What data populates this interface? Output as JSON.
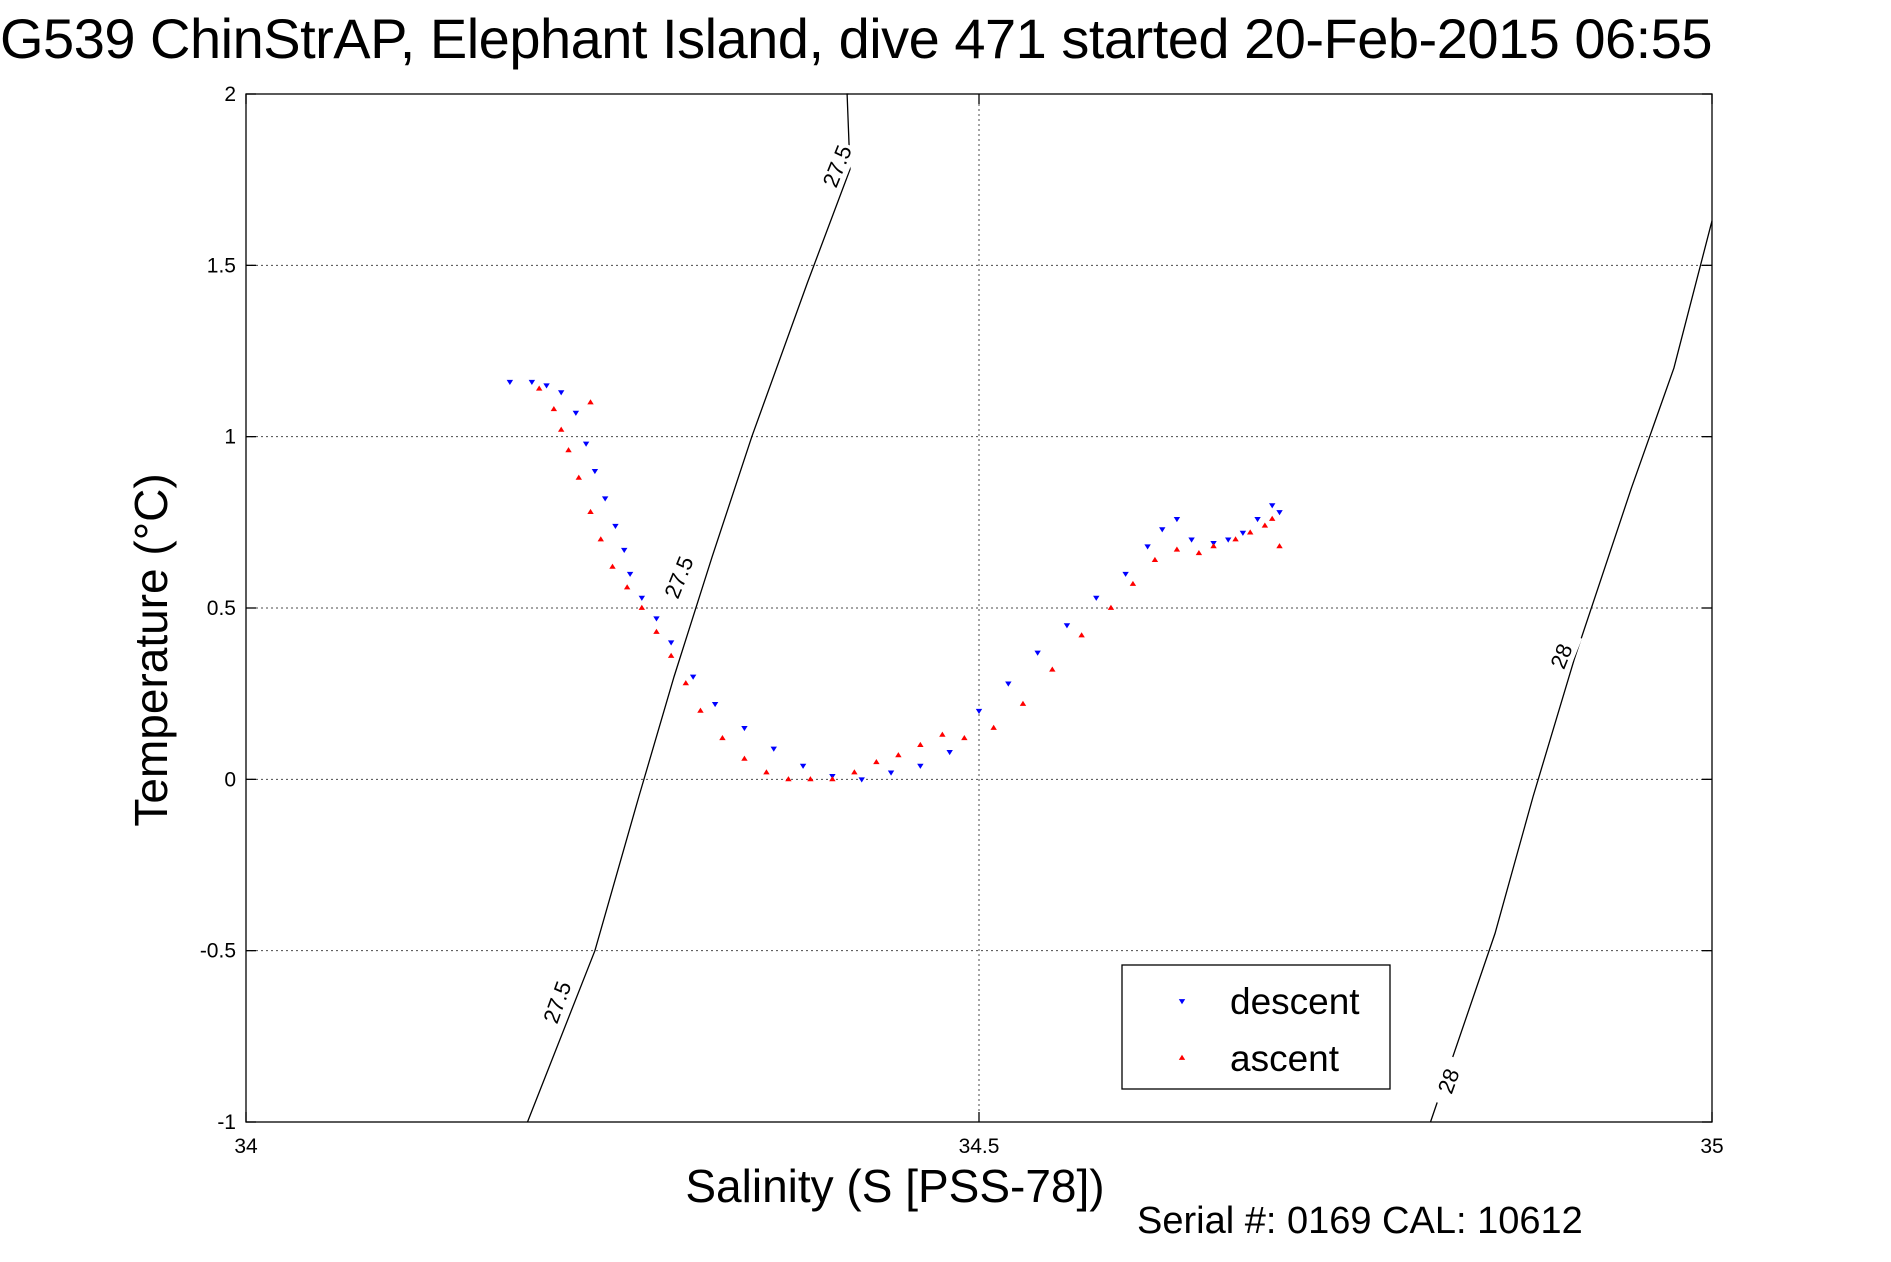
{
  "chart_data": {
    "type": "scatter",
    "title": "G539 ChinStrAP, Elephant Island, dive 471 started 20-Feb-2015 06:55",
    "xlabel": "Salinity (S [PSS-78])",
    "ylabel": "Temperature (°C)",
    "xlim": [
      34,
      35
    ],
    "ylim": [
      -1,
      2
    ],
    "x_ticks": [
      34,
      34.5,
      35
    ],
    "x_tick_labels": [
      "34",
      "34.5",
      "35"
    ],
    "y_ticks": [
      -1,
      -0.5,
      0,
      0.5,
      1,
      1.5,
      2
    ],
    "y_tick_labels": [
      "-1",
      "-0.5",
      "0",
      "0.5",
      "1",
      "1.5",
      "2"
    ],
    "grid": true,
    "legend_position": "bottom-right",
    "series": [
      {
        "name": "descent",
        "marker": "triangle-down",
        "color": "#0000ff",
        "points": [
          [
            34.18,
            1.16
          ],
          [
            34.195,
            1.16
          ],
          [
            34.205,
            1.15
          ],
          [
            34.215,
            1.13
          ],
          [
            34.225,
            1.07
          ],
          [
            34.232,
            0.98
          ],
          [
            34.238,
            0.9
          ],
          [
            34.245,
            0.82
          ],
          [
            34.252,
            0.74
          ],
          [
            34.258,
            0.67
          ],
          [
            34.262,
            0.6
          ],
          [
            34.27,
            0.53
          ],
          [
            34.28,
            0.47
          ],
          [
            34.29,
            0.4
          ],
          [
            34.305,
            0.3
          ],
          [
            34.32,
            0.22
          ],
          [
            34.34,
            0.15
          ],
          [
            34.36,
            0.09
          ],
          [
            34.38,
            0.04
          ],
          [
            34.4,
            0.01
          ],
          [
            34.42,
            0.0
          ],
          [
            34.44,
            0.02
          ],
          [
            34.46,
            0.04
          ],
          [
            34.48,
            0.08
          ],
          [
            34.5,
            0.2
          ],
          [
            34.52,
            0.28
          ],
          [
            34.54,
            0.37
          ],
          [
            34.56,
            0.45
          ],
          [
            34.58,
            0.53
          ],
          [
            34.6,
            0.6
          ],
          [
            34.615,
            0.68
          ],
          [
            34.625,
            0.73
          ],
          [
            34.635,
            0.76
          ],
          [
            34.645,
            0.7
          ],
          [
            34.66,
            0.69
          ],
          [
            34.67,
            0.7
          ],
          [
            34.68,
            0.72
          ],
          [
            34.69,
            0.76
          ],
          [
            34.7,
            0.8
          ],
          [
            34.705,
            0.78
          ]
        ]
      },
      {
        "name": "ascent",
        "marker": "triangle-up",
        "color": "#ff0000",
        "points": [
          [
            34.2,
            1.14
          ],
          [
            34.21,
            1.08
          ],
          [
            34.215,
            1.02
          ],
          [
            34.22,
            0.96
          ],
          [
            34.227,
            0.88
          ],
          [
            34.235,
            0.78
          ],
          [
            34.242,
            0.7
          ],
          [
            34.25,
            0.62
          ],
          [
            34.26,
            0.56
          ],
          [
            34.27,
            0.5
          ],
          [
            34.28,
            0.43
          ],
          [
            34.29,
            0.36
          ],
          [
            34.3,
            0.28
          ],
          [
            34.31,
            0.2
          ],
          [
            34.325,
            0.12
          ],
          [
            34.34,
            0.06
          ],
          [
            34.355,
            0.02
          ],
          [
            34.37,
            0.0
          ],
          [
            34.385,
            0.0
          ],
          [
            34.4,
            0.0
          ],
          [
            34.415,
            0.02
          ],
          [
            34.43,
            0.05
          ],
          [
            34.445,
            0.07
          ],
          [
            34.46,
            0.1
          ],
          [
            34.475,
            0.13
          ],
          [
            34.49,
            0.12
          ],
          [
            34.51,
            0.15
          ],
          [
            34.53,
            0.22
          ],
          [
            34.55,
            0.32
          ],
          [
            34.57,
            0.42
          ],
          [
            34.59,
            0.5
          ],
          [
            34.605,
            0.57
          ],
          [
            34.62,
            0.64
          ],
          [
            34.635,
            0.67
          ],
          [
            34.65,
            0.66
          ],
          [
            34.66,
            0.68
          ],
          [
            34.675,
            0.7
          ],
          [
            34.685,
            0.72
          ],
          [
            34.695,
            0.74
          ],
          [
            34.7,
            0.76
          ],
          [
            34.705,
            0.68
          ],
          [
            34.235,
            1.1
          ]
        ]
      }
    ],
    "contours": [
      {
        "label": "27.5",
        "points": [
          [
            34.192,
            -1.0
          ],
          [
            34.238,
            -0.5
          ],
          [
            34.268,
            -0.05
          ],
          [
            34.292,
            0.3
          ],
          [
            34.318,
            0.65
          ],
          [
            34.345,
            1.0
          ],
          [
            34.383,
            1.45
          ],
          [
            34.412,
            1.78
          ],
          [
            34.41,
            2.0
          ],
          [
            34.411,
            2.0
          ]
        ]
      },
      {
        "label": "28",
        "points": [
          [
            34.808,
            -1.0
          ],
          [
            34.852,
            -0.45
          ],
          [
            34.878,
            -0.05
          ],
          [
            34.906,
            0.35
          ],
          [
            34.945,
            0.85
          ],
          [
            34.974,
            1.2
          ],
          [
            35.0,
            1.63
          ]
        ]
      }
    ],
    "contour_labels": [
      {
        "text": "27.5",
        "x": 34.403,
        "y": 1.79,
        "angle": -68
      },
      {
        "text": "27.5",
        "x": 34.295,
        "y": 0.59,
        "angle": -68
      },
      {
        "text": "27.5",
        "x": 34.212,
        "y": -0.65,
        "angle": -70
      },
      {
        "text": "28",
        "x": 34.897,
        "y": 0.36,
        "angle": -68
      },
      {
        "text": "28",
        "x": 34.82,
        "y": -0.88,
        "angle": -70
      }
    ],
    "footer": "Serial #: 0169 CAL: 10612"
  }
}
